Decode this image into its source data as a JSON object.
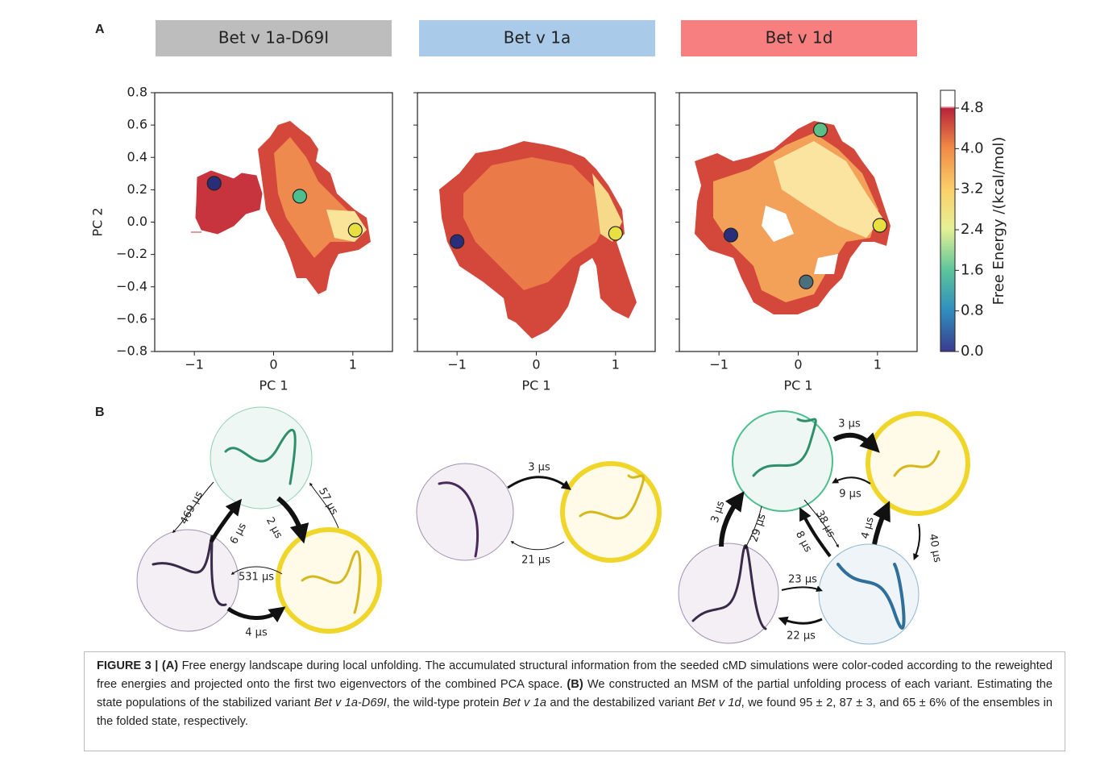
{
  "panel_a": {
    "label": "A"
  },
  "chart_data": [
    {
      "type": "scatter",
      "title": "Bet v 1a-D69I",
      "header_color": "#bdbdbd",
      "xlabel": "PC 1",
      "ylabel": "PC 2",
      "xlim": [
        -1.5,
        1.5
      ],
      "ylim": [
        -0.8,
        0.8
      ],
      "xticks": [
        {
          "value": -1,
          "label": "−1"
        },
        0,
        1
      ],
      "yticks": [
        {
          "value": -0.8,
          "label": "−0.8"
        },
        {
          "value": -0.6,
          "label": "−0.6"
        },
        {
          "value": -0.4,
          "label": "−0.4"
        },
        {
          "value": -0.2,
          "label": "−0.2"
        },
        {
          "value": 0,
          "label": "0.0"
        },
        0.2,
        0.4,
        0.6,
        0.8
      ],
      "x": [
        -0.75,
        0.33,
        1.03
      ],
      "y": [
        0.24,
        0.16,
        -0.05
      ],
      "colors": [
        "#2a2e7a",
        "#4dbf8e",
        "#e8e040"
      ]
    },
    {
      "type": "scatter",
      "title": "Bet v 1a",
      "header_color": "#a9cbe9",
      "xlabel": "PC 1",
      "xlim": [
        -1.5,
        1.5
      ],
      "ylim": [
        -0.8,
        0.8
      ],
      "xticks": [
        {
          "value": -1,
          "label": "−1"
        },
        0,
        1
      ],
      "x": [
        -1.0,
        1.0
      ],
      "y": [
        -0.12,
        -0.07
      ],
      "colors": [
        "#2a2e7a",
        "#e8e040"
      ]
    },
    {
      "type": "scatter",
      "title": "Bet v 1d",
      "header_color": "#f77f7f",
      "xlabel": "PC 1",
      "xlim": [
        -1.5,
        1.5
      ],
      "ylim": [
        -0.8,
        0.8
      ],
      "xticks": [
        {
          "value": -1,
          "label": "−1"
        },
        0,
        1
      ],
      "x": [
        -0.85,
        0.28,
        1.03,
        0.1
      ],
      "y": [
        -0.08,
        0.57,
        -0.02,
        -0.37
      ],
      "colors": [
        "#2a2e7a",
        "#5cbf88",
        "#e8e040",
        "#4b6f7f"
      ]
    }
  ],
  "colorbar": {
    "label": "Free Energy /(kcal/mol)",
    "lim": [
      0,
      5.15
    ],
    "ticks": [
      {
        "value": 0,
        "label": "0.0"
      },
      0.8,
      1.6,
      2.4,
      3.2,
      {
        "value": 4,
        "label": "4.0"
      },
      4.8
    ]
  },
  "panel_b": {
    "label": "B",
    "networks": [
      {
        "rates": [
          "469 µs",
          "6 µs",
          "2 µs",
          "57 µs",
          "531 µs",
          "4 µs"
        ]
      },
      {
        "rates": [
          "3 µs",
          "21 µs"
        ]
      },
      {
        "rates": [
          "3 µs",
          "9 µs",
          "3 µs",
          "29 µs",
          "38 µs",
          "8 µs",
          "4 µs",
          "40 µs",
          "23 µs",
          "22 µs"
        ]
      }
    ]
  },
  "caption": [
    {
      "text": "FIGURE 3 | (A)",
      "style": "bold"
    },
    {
      "text": " Free energy landscape during local unfolding. The accumulated structural information from the seeded cMD simulations were color-coded according to the reweighted free energies and projected onto the first two eigenvectors of the combined PCA space. ",
      "style": "normal"
    },
    {
      "text": "(B)",
      "style": "bold"
    },
    {
      "text": " We constructed an MSM of the partial unfolding process of each variant. Estimating the state populations of the stabilized variant ",
      "style": "normal"
    },
    {
      "text": "Bet v 1a-D69I",
      "style": "italic"
    },
    {
      "text": ", the wild-type protein ",
      "style": "normal"
    },
    {
      "text": "Bet v 1a",
      "style": "italic"
    },
    {
      "text": " and the destabilized variant ",
      "style": "normal"
    },
    {
      "text": "Bet v 1d",
      "style": "italic"
    },
    {
      "text": ", we found 95 ± 2, 87 ± 3, and 65 ± 6% of the ensembles in the folded state, respectively.",
      "style": "normal"
    }
  ]
}
